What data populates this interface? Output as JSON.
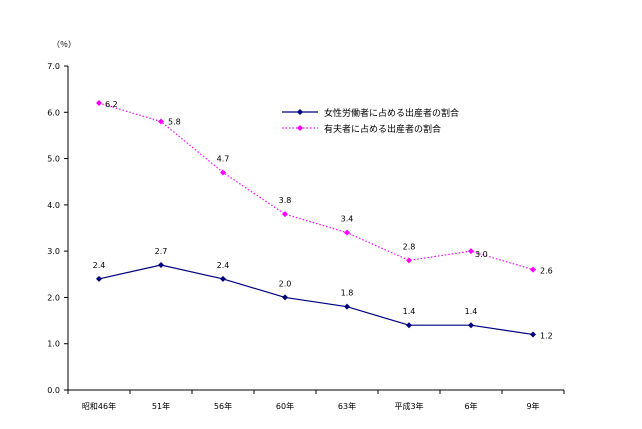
{
  "chart_data": {
    "type": "line",
    "unit_label": "（％）",
    "categories": [
      "昭和46年",
      "51年",
      "56年",
      "60年",
      "63年",
      "平成3年",
      "6年",
      "9年"
    ],
    "ylim": [
      0.0,
      7.0
    ],
    "yticks": [
      "0.0",
      "1.0",
      "2.0",
      "3.0",
      "4.0",
      "5.0",
      "6.0",
      "7.0"
    ],
    "grid": false,
    "legend_position": "top-right",
    "series": [
      {
        "name": "女性労働者に占める出産者の割合",
        "color": "#000080",
        "line_style": "solid",
        "marker": "diamond",
        "values": [
          2.4,
          2.7,
          2.4,
          2.0,
          1.8,
          1.4,
          1.4,
          1.2
        ],
        "labels": [
          "2.4",
          "2.7",
          "2.4",
          "2.0",
          "1.8",
          "1.4",
          "1.4",
          "1.2"
        ]
      },
      {
        "name": "有夫者に占める出産者の割合",
        "color": "#ff00ff",
        "line_style": "dotted",
        "marker": "diamond",
        "values": [
          6.2,
          5.8,
          4.7,
          3.8,
          3.4,
          2.8,
          3.0,
          2.6
        ],
        "labels": [
          "6.2",
          "5.8",
          "4.7",
          "3.8",
          "3.4",
          "2.8",
          "3.0",
          "2.6"
        ]
      }
    ]
  }
}
